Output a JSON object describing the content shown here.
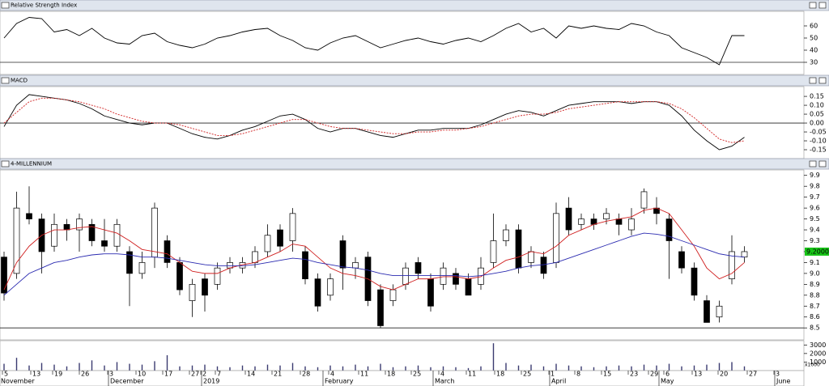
{
  "chart_data": [
    {
      "type": "line",
      "title": "Relative Strength Index",
      "series": [
        {
          "color": "#000000",
          "values": [
            50,
            62,
            67,
            66,
            55,
            57,
            52,
            58,
            50,
            46,
            45,
            52,
            54,
            47,
            44,
            42,
            45,
            50,
            52,
            55,
            57,
            58,
            52,
            48,
            42,
            40,
            46,
            50,
            52,
            47,
            42,
            45,
            48,
            50,
            47,
            45,
            48,
            50,
            47,
            52,
            58,
            62,
            55,
            58,
            50,
            60,
            58,
            60,
            58,
            57,
            62,
            60,
            55,
            52,
            42,
            38,
            34,
            28,
            52,
            52
          ]
        }
      ],
      "ylim": [
        20,
        72
      ],
      "yticks": [
        60,
        50,
        40,
        30
      ],
      "ref_line": 30
    },
    {
      "type": "line",
      "title": "MACD",
      "series": [
        {
          "color": "#000000",
          "values": [
            -0.02,
            0.1,
            0.16,
            0.15,
            0.14,
            0.13,
            0.11,
            0.08,
            0.04,
            0.02,
            0.0,
            -0.01,
            0.0,
            0.0,
            -0.03,
            -0.06,
            -0.08,
            -0.09,
            -0.07,
            -0.04,
            -0.02,
            0.01,
            0.04,
            0.05,
            0.02,
            -0.03,
            -0.05,
            -0.03,
            -0.03,
            -0.05,
            -0.07,
            -0.08,
            -0.06,
            -0.04,
            -0.04,
            -0.03,
            -0.03,
            -0.03,
            -0.01,
            0.02,
            0.05,
            0.07,
            0.06,
            0.04,
            0.07,
            0.1,
            0.11,
            0.12,
            0.12,
            0.12,
            0.11,
            0.12,
            0.12,
            0.1,
            0.04,
            -0.04,
            -0.1,
            -0.15,
            -0.13,
            -0.08
          ]
        },
        {
          "color": "#d02020",
          "style": "dotted",
          "values": [
            0.0,
            0.06,
            0.12,
            0.14,
            0.14,
            0.13,
            0.12,
            0.1,
            0.08,
            0.05,
            0.03,
            0.01,
            0.0,
            0.0,
            -0.01,
            -0.03,
            -0.05,
            -0.07,
            -0.07,
            -0.06,
            -0.04,
            -0.02,
            0.0,
            0.02,
            0.02,
            0.0,
            -0.02,
            -0.03,
            -0.03,
            -0.04,
            -0.05,
            -0.06,
            -0.06,
            -0.05,
            -0.05,
            -0.04,
            -0.04,
            -0.03,
            -0.02,
            0.0,
            0.02,
            0.04,
            0.05,
            0.05,
            0.06,
            0.08,
            0.09,
            0.1,
            0.11,
            0.12,
            0.12,
            0.12,
            0.12,
            0.11,
            0.08,
            0.03,
            -0.03,
            -0.09,
            -0.11,
            -0.1
          ]
        }
      ],
      "ylim": [
        -0.2,
        0.205
      ],
      "yticks": [
        0.15,
        {
          "value": 0.1,
          "label": "0.10"
        },
        0.05,
        {
          "value": 0,
          "label": "0.00"
        },
        -0.05,
        {
          "value": -0.1,
          "label": "-0.10"
        },
        -0.15
      ],
      "ref_line": 0
    },
    {
      "type": "candlestick",
      "title": "4-MILLENNIUM",
      "open": [
        9.15,
        9.0,
        9.55,
        9.5,
        9.25,
        9.45,
        9.4,
        9.45,
        9.3,
        9.25,
        9.2,
        9.0,
        9.15,
        9.3,
        9.1,
        8.75,
        8.95,
        8.9,
        9.05,
        9.05,
        9.1,
        9.2,
        9.4,
        9.3,
        9.2,
        8.95,
        8.8,
        9.3,
        9.05,
        9.15,
        8.85,
        8.75,
        8.9,
        9.1,
        8.95,
        8.9,
        9.0,
        8.95,
        8.9,
        9.1,
        9.3,
        9.4,
        9.1,
        9.15,
        9.1,
        9.6,
        9.45,
        9.5,
        9.5,
        9.5,
        9.4,
        9.6,
        9.6,
        9.5,
        9.2,
        9.05,
        8.75,
        8.6,
        8.95,
        9.15
      ],
      "high": [
        9.2,
        9.75,
        9.8,
        9.55,
        9.55,
        9.5,
        9.55,
        9.5,
        9.5,
        9.5,
        9.25,
        9.2,
        9.65,
        9.35,
        9.15,
        8.95,
        9.0,
        9.1,
        9.15,
        9.15,
        9.25,
        9.45,
        9.45,
        9.6,
        9.25,
        9.0,
        9.0,
        9.35,
        9.15,
        9.2,
        8.9,
        8.9,
        9.1,
        9.15,
        9.0,
        9.1,
        9.05,
        9.0,
        9.15,
        9.55,
        9.45,
        9.45,
        9.25,
        9.2,
        9.65,
        9.7,
        9.55,
        9.55,
        9.6,
        9.55,
        9.6,
        9.78,
        9.7,
        9.55,
        9.25,
        9.1,
        8.8,
        8.75,
        9.35,
        9.25
      ],
      "low": [
        8.75,
        8.95,
        9.45,
        9.0,
        9.2,
        9.3,
        9.2,
        9.25,
        9.2,
        9.2,
        8.7,
        8.95,
        9.05,
        9.05,
        8.8,
        8.6,
        8.65,
        8.85,
        9.0,
        9.0,
        9.05,
        9.15,
        9.2,
        9.2,
        8.9,
        8.65,
        8.75,
        8.85,
        8.95,
        8.7,
        8.5,
        8.7,
        8.85,
        8.95,
        8.65,
        8.85,
        8.85,
        8.8,
        8.85,
        9.05,
        9.25,
        9.0,
        9.05,
        8.95,
        9.05,
        9.35,
        9.4,
        9.4,
        9.45,
        9.35,
        9.35,
        9.55,
        9.45,
        8.95,
        9.0,
        8.75,
        8.55,
        8.55,
        8.9,
        9.1
      ],
      "close": [
        8.82,
        9.6,
        9.5,
        9.2,
        9.45,
        9.4,
        9.5,
        9.3,
        9.25,
        9.45,
        9.0,
        9.1,
        9.6,
        9.1,
        8.85,
        8.9,
        8.8,
        9.05,
        9.1,
        9.1,
        9.2,
        9.35,
        9.25,
        9.55,
        8.95,
        8.7,
        8.95,
        9.05,
        9.1,
        8.75,
        8.52,
        8.85,
        9.05,
        9.0,
        8.7,
        9.05,
        8.9,
        8.8,
        9.05,
        9.3,
        9.4,
        9.05,
        9.2,
        9.0,
        9.55,
        9.4,
        9.5,
        9.45,
        9.55,
        9.45,
        9.5,
        9.75,
        9.55,
        9.3,
        9.05,
        8.8,
        8.55,
        8.7,
        9.2,
        9.2
      ],
      "series": [
        {
          "color": "#d02020",
          "values": [
            8.85,
            9.1,
            9.25,
            9.35,
            9.4,
            9.4,
            9.42,
            9.43,
            9.4,
            9.37,
            9.3,
            9.22,
            9.2,
            9.18,
            9.1,
            9.02,
            9.0,
            9.0,
            9.05,
            9.08,
            9.1,
            9.15,
            9.2,
            9.27,
            9.25,
            9.15,
            9.05,
            9.0,
            8.98,
            8.95,
            8.88,
            8.85,
            8.9,
            8.95,
            8.95,
            8.97,
            8.97,
            8.95,
            8.97,
            9.05,
            9.12,
            9.15,
            9.2,
            9.18,
            9.25,
            9.35,
            9.4,
            9.45,
            9.48,
            9.5,
            9.52,
            9.58,
            9.6,
            9.55,
            9.4,
            9.25,
            9.05,
            8.95,
            9.0,
            9.1
          ]
        },
        {
          "color": "#2a2ab0",
          "values": [
            8.8,
            8.9,
            9.0,
            9.05,
            9.1,
            9.12,
            9.15,
            9.17,
            9.18,
            9.18,
            9.17,
            9.15,
            9.15,
            9.14,
            9.12,
            9.1,
            9.08,
            9.07,
            9.07,
            9.07,
            9.08,
            9.1,
            9.12,
            9.14,
            9.13,
            9.1,
            9.08,
            9.06,
            9.05,
            9.03,
            9.0,
            8.98,
            8.98,
            8.98,
            8.98,
            8.98,
            8.98,
            8.97,
            8.98,
            9.0,
            9.02,
            9.05,
            9.07,
            9.08,
            9.1,
            9.14,
            9.18,
            9.22,
            9.26,
            9.3,
            9.34,
            9.37,
            9.36,
            9.34,
            9.3,
            9.26,
            9.22,
            9.18,
            9.16,
            9.15
          ]
        }
      ],
      "ylim": [
        8.39,
        9.95
      ],
      "yticks": [
        9.9,
        9.8,
        9.7,
        9.6,
        9.5,
        9.4,
        9.3,
        9.2,
        9.1,
        {
          "value": 9,
          "label": "9.0"
        },
        8.9,
        8.8,
        8.7,
        8.6,
        8.5
      ],
      "ref_line": 8.5,
      "last_value": {
        "value": 9.2,
        "label": "9.2000"
      }
    },
    {
      "type": "bar",
      "color": "#3a3a70",
      "values": [
        800,
        1500,
        600,
        900,
        700,
        500,
        900,
        1200,
        600,
        1000,
        800,
        700,
        1100,
        1800,
        500,
        600,
        700,
        500,
        400,
        600,
        500,
        700,
        600,
        900,
        500,
        400,
        600,
        500,
        700,
        500,
        800,
        400,
        500,
        600,
        400,
        500,
        400,
        300,
        500,
        3200,
        900,
        600,
        700,
        500,
        800,
        600,
        500,
        400,
        500,
        600,
        500,
        700,
        600,
        800,
        500,
        600,
        700,
        900,
        1000,
        500
      ],
      "ylim": [
        0,
        3500
      ],
      "yticks": [
        3000,
        2000,
        1000
      ],
      "unit_label": "x1000",
      "xtick_labels": [
        "5",
        "13",
        "19",
        "26",
        "3",
        "10",
        "17",
        "27",
        "2",
        "7",
        "14",
        "21",
        "28",
        "4",
        "11",
        "18",
        "25",
        "4",
        "11",
        "18",
        "25",
        "1",
        "8",
        "15",
        "23",
        "29",
        "6",
        "13",
        "20",
        "27",
        "3"
      ],
      "xtick_month_labels": [
        "November",
        "December",
        "2019",
        "February",
        "March",
        "April",
        "May",
        "June"
      ]
    }
  ]
}
